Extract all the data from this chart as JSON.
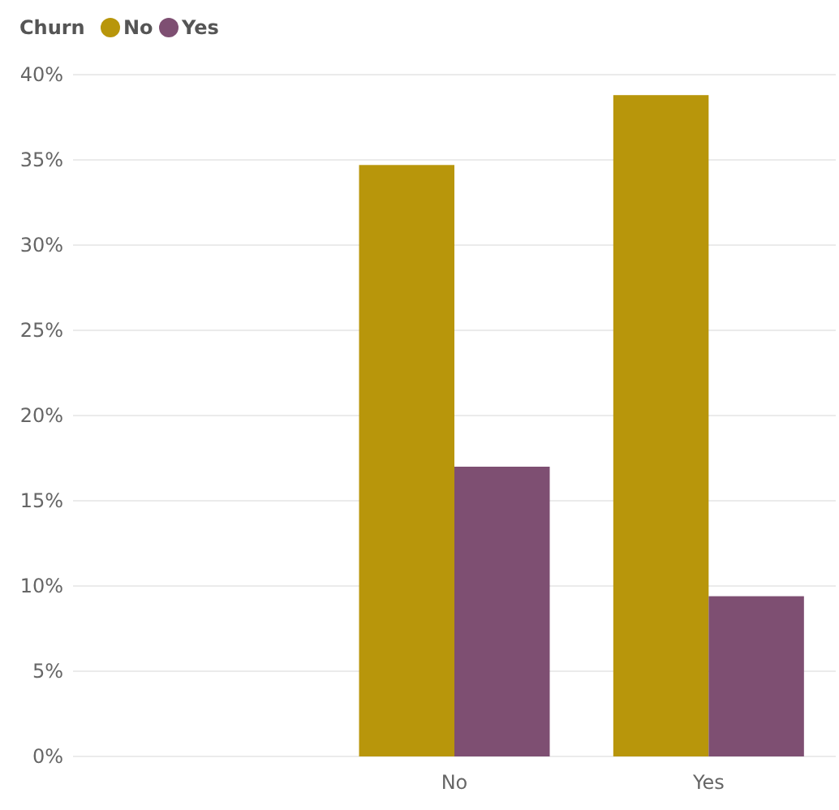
{
  "chart_data": {
    "type": "bar",
    "legend_title": "Churn",
    "categories": [
      null,
      "No",
      "Yes"
    ],
    "series": [
      {
        "name": "No",
        "color": "#b8960b",
        "values": [
          null,
          34.7,
          38.8
        ]
      },
      {
        "name": "Yes",
        "color": "#7e4f72",
        "values": [
          null,
          17.0,
          9.4
        ]
      }
    ],
    "ylim": [
      0,
      40
    ],
    "yticks": [
      {
        "value": 0,
        "label": "0%"
      },
      {
        "value": 5,
        "label": "5%"
      },
      {
        "value": 10,
        "label": "10%"
      },
      {
        "value": 15,
        "label": "15%"
      },
      {
        "value": 20,
        "label": "20%"
      },
      {
        "value": 25,
        "label": "25%"
      },
      {
        "value": 30,
        "label": "30%"
      },
      {
        "value": 35,
        "label": "35%"
      },
      {
        "value": 40,
        "label": "40%"
      }
    ],
    "grid": "y",
    "legend": "top left"
  }
}
